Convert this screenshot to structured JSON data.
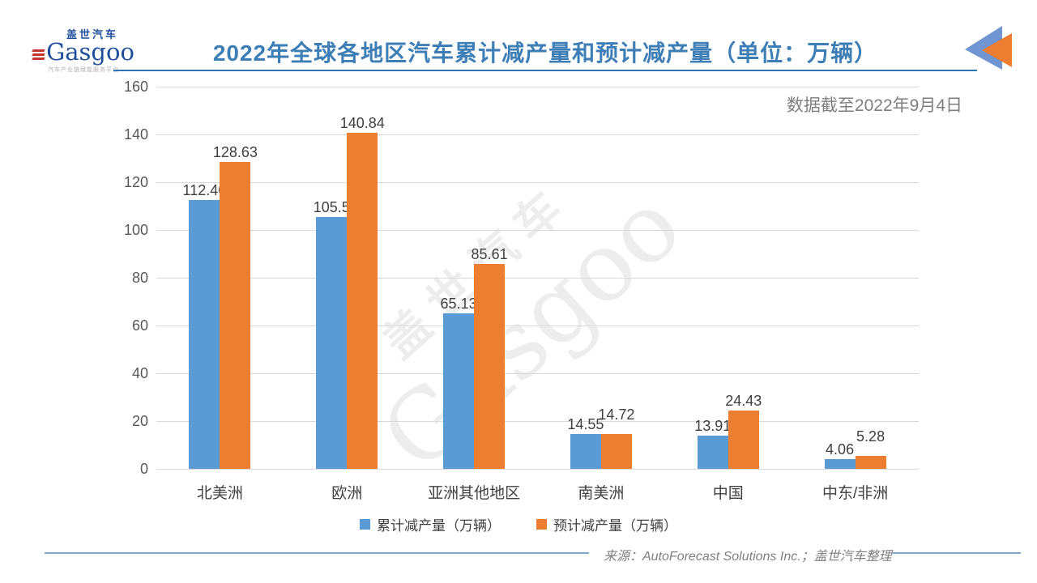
{
  "logo": {
    "cn": "盖世汽车",
    "en": "Gasgoo",
    "tagline": "汽车产业链赋能服务平台"
  },
  "header": {
    "title": "2022年全球各地区汽车累计减产量和预计减产量（单位：万辆）"
  },
  "note": "数据截至2022年9月4日",
  "source": "来源：AutoForecast Solutions Inc.；盖世汽车整理",
  "watermark": {
    "cn": "盖世汽车",
    "en": "Gasgoo"
  },
  "colors": {
    "series_blue": "#5B9BD5",
    "series_orange": "#ED7D31",
    "title_blue": "#3E7EB6",
    "rule_blue": "#2E75B6",
    "grid_gray": "#D9D9D9",
    "axis_text": "#595959",
    "footer_line_blue": "#7FA8CF"
  },
  "chart_data": {
    "type": "bar",
    "title": "2022年全球各地区汽车累计减产量和预计减产量（单位：万辆）",
    "categories": [
      "北美洲",
      "欧洲",
      "亚洲其他地区",
      "南美洲",
      "中国",
      "中东/非洲"
    ],
    "series": [
      {
        "name": "累计减产量（万辆）",
        "color": "#5B9BD5",
        "values": [
          112.46,
          105.5,
          65.13,
          14.55,
          13.91,
          4.06
        ]
      },
      {
        "name": "预计减产量（万辆）",
        "color": "#ED7D31",
        "values": [
          128.63,
          140.84,
          85.61,
          14.72,
          24.43,
          5.28
        ]
      }
    ],
    "xlabel": "",
    "ylabel": "",
    "ylim": [
      0,
      160
    ],
    "ytick_step": 20,
    "grid": true,
    "legend_position": "bottom"
  }
}
